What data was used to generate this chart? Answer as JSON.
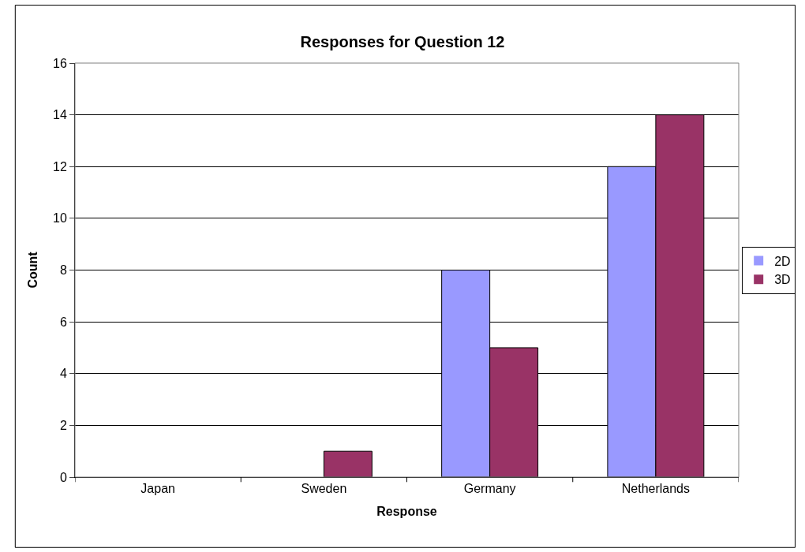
{
  "chart_data": {
    "type": "bar",
    "title": "Responses for Question 12",
    "xlabel": "Response",
    "ylabel": "Count",
    "categories": [
      "Japan",
      "Sweden",
      "Germany",
      "Netherlands"
    ],
    "series": [
      {
        "name": "2D",
        "color": "#9999ff",
        "values": [
          0,
          0,
          8,
          12
        ]
      },
      {
        "name": "3D",
        "color": "#993366",
        "values": [
          0,
          1,
          5,
          14
        ]
      }
    ],
    "ylim": [
      0,
      16
    ],
    "yticks": [
      0,
      2,
      4,
      6,
      8,
      10,
      12,
      14,
      16
    ],
    "grid": "y",
    "legend": "right"
  }
}
